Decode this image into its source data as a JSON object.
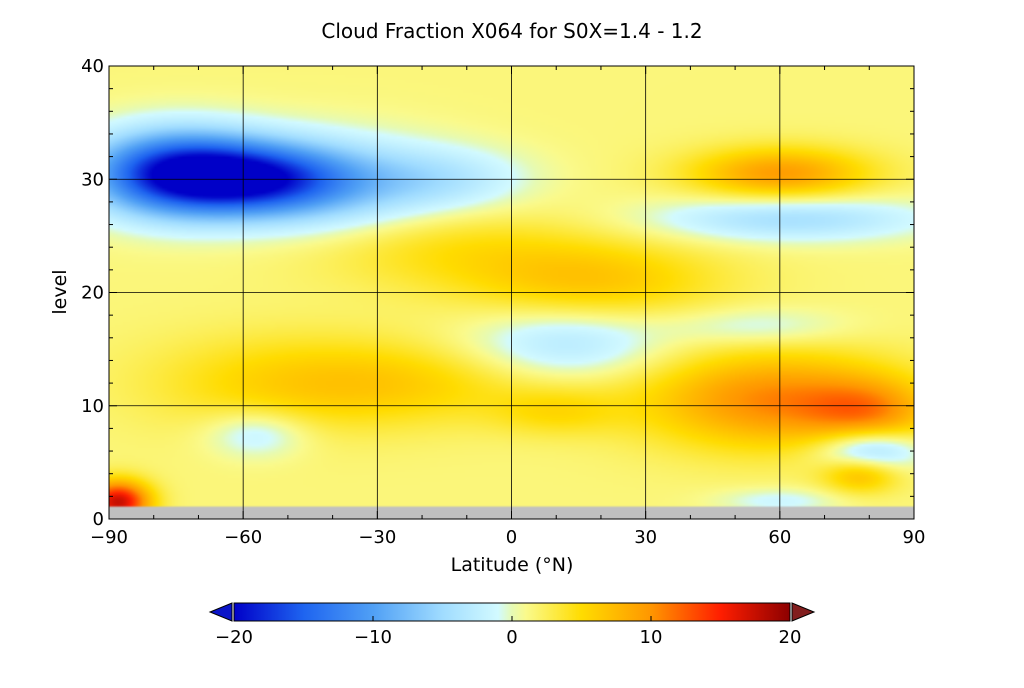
{
  "chart_data": {
    "type": "heatmap",
    "title": "Cloud Fraction X064 for S0X=1.4 - 1.2",
    "xlabel": "Latitude (°N)",
    "ylabel": "level",
    "xlim": [
      -90,
      90
    ],
    "ylim": [
      0,
      40
    ],
    "x_ticks": [
      -90,
      -60,
      -30,
      0,
      30,
      60,
      90
    ],
    "x_tick_labels": [
      "−90",
      "−60",
      "−30",
      "0",
      "30",
      "60",
      "90"
    ],
    "y_ticks": [
      0,
      10,
      20,
      30,
      40
    ],
    "y_tick_labels": [
      "0",
      "10",
      "20",
      "30",
      "40"
    ],
    "grid": true,
    "background_value": 1.5,
    "missing_band_levels": [
      0,
      1
    ],
    "missing_color": "#c0c0c0",
    "features": [
      {
        "lat": -75,
        "level": 30.5,
        "value": -20,
        "sigma_lat": 14,
        "sigma_level": 2.6
      },
      {
        "lat": -55,
        "level": 30,
        "value": -13,
        "sigma_lat": 14,
        "sigma_level": 2.2
      },
      {
        "lat": -40,
        "level": 29.5,
        "value": -6,
        "sigma_lat": 18,
        "sigma_level": 3
      },
      {
        "lat": -15,
        "level": 30,
        "value": -4,
        "sigma_lat": 14,
        "sigma_level": 2
      },
      {
        "lat": 60,
        "level": 30.5,
        "value": 8,
        "sigma_lat": 14,
        "sigma_level": 1.6
      },
      {
        "lat": 62,
        "level": 26.5,
        "value": -6,
        "sigma_lat": 22,
        "sigma_level": 1.4
      },
      {
        "lat": -15,
        "level": 24,
        "value": 3,
        "sigma_lat": 22,
        "sigma_level": 2.5
      },
      {
        "lat": 18,
        "level": 21,
        "value": 5,
        "sigma_lat": 20,
        "sigma_level": 2.5
      },
      {
        "lat": -50,
        "level": 12,
        "value": 4,
        "sigma_lat": 22,
        "sigma_level": 3
      },
      {
        "lat": -20,
        "level": 12,
        "value": 3,
        "sigma_lat": 20,
        "sigma_level": 2.5
      },
      {
        "lat": 12,
        "level": 15.5,
        "value": -5,
        "sigma_lat": 16,
        "sigma_level": 2.2
      },
      {
        "lat": 58,
        "level": 10.5,
        "value": 9,
        "sigma_lat": 20,
        "sigma_level": 3
      },
      {
        "lat": 80,
        "level": 9.5,
        "value": 6,
        "sigma_lat": 10,
        "sigma_level": 2
      },
      {
        "lat": 55,
        "level": 17,
        "value": -3,
        "sigma_lat": 14,
        "sigma_level": 1.2
      },
      {
        "lat": -57,
        "level": 7.5,
        "value": -4,
        "sigma_lat": 8,
        "sigma_level": 1.5
      },
      {
        "lat": 10,
        "level": 9.5,
        "value": 3,
        "sigma_lat": 10,
        "sigma_level": 1.5
      },
      {
        "lat": 80,
        "level": 6,
        "value": -8,
        "sigma_lat": 8,
        "sigma_level": 1.3
      },
      {
        "lat": 78,
        "level": 4,
        "value": 6,
        "sigma_lat": 6,
        "sigma_level": 1.2
      },
      {
        "lat": -88,
        "level": 1.5,
        "value": 16,
        "sigma_lat": 5,
        "sigma_level": 1.3
      },
      {
        "lat": 60,
        "level": 1.6,
        "value": -3,
        "sigma_lat": 10,
        "sigma_level": 0.8
      }
    ],
    "colorbar": {
      "min": -20,
      "max": 20,
      "ticks": [
        -20,
        -10,
        0,
        10,
        20
      ],
      "tick_labels": [
        "−20",
        "−10",
        "0",
        "10",
        "20"
      ],
      "extend": "both",
      "under_color": "#0a14c8",
      "over_color": "#821e1e",
      "stops": [
        {
          "value": -20,
          "color": "#0000c8"
        },
        {
          "value": -15,
          "color": "#1e64f0"
        },
        {
          "value": -10,
          "color": "#50a0f5"
        },
        {
          "value": -5,
          "color": "#a0dcff"
        },
        {
          "value": -1,
          "color": "#d2faff"
        },
        {
          "value": 0,
          "color": "#e6fab4"
        },
        {
          "value": 1,
          "color": "#fafa8c"
        },
        {
          "value": 5,
          "color": "#ffdc00"
        },
        {
          "value": 10,
          "color": "#ff9600"
        },
        {
          "value": 15,
          "color": "#ff1e00"
        },
        {
          "value": 20,
          "color": "#8c0000"
        }
      ]
    }
  }
}
